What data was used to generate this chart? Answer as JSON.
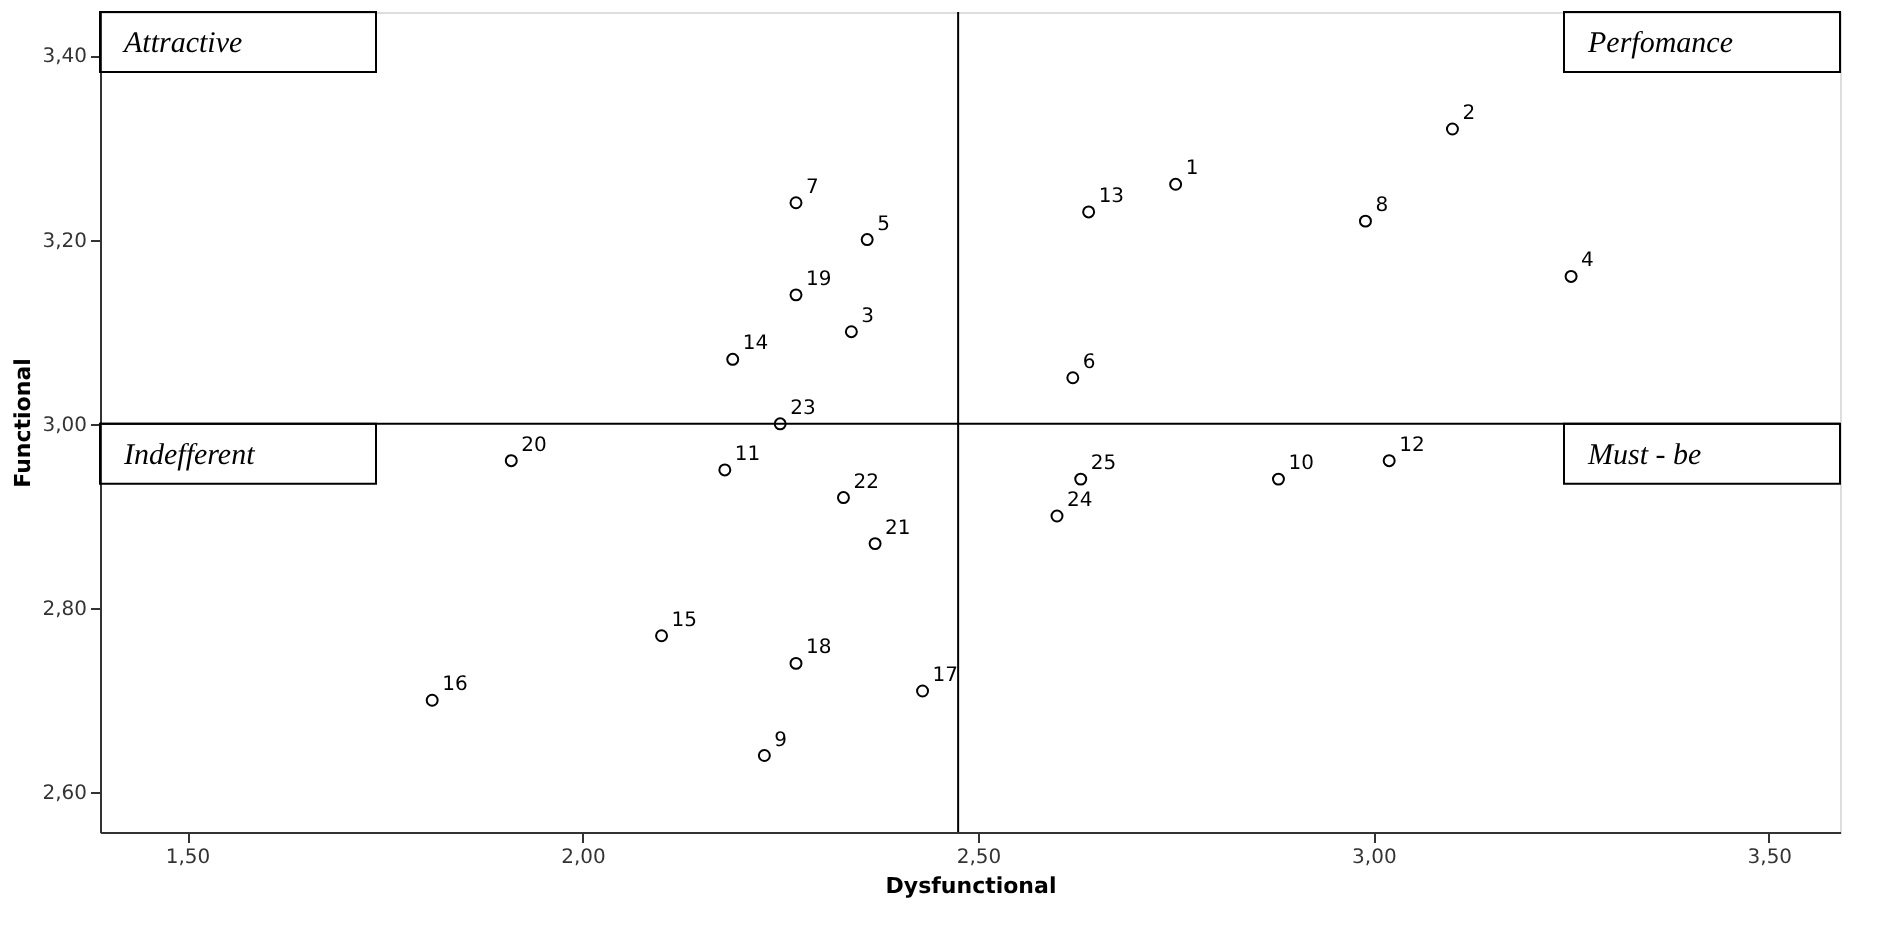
{
  "chart_data": {
    "type": "scatter",
    "xlabel": "Dysfunctional",
    "ylabel": "Functional",
    "x": [
      2.75,
      3.1,
      2.34,
      3.25,
      2.36,
      2.62,
      2.27,
      2.99,
      2.23,
      2.88,
      2.18,
      3.02,
      2.64,
      2.19,
      2.1,
      1.81,
      2.43,
      2.27,
      2.27,
      1.91,
      2.37,
      2.33,
      2.25,
      2.6,
      2.63
    ],
    "values": [
      3.26,
      3.32,
      3.1,
      3.16,
      3.2,
      3.05,
      3.24,
      3.22,
      2.64,
      2.94,
      2.95,
      2.96,
      3.23,
      3.07,
      2.77,
      2.7,
      2.71,
      2.74,
      3.14,
      2.96,
      2.87,
      2.92,
      3.0,
      2.9,
      2.94
    ],
    "color": "#000000",
    "marker": "circle",
    "grid": false,
    "xlim": [
      1.39,
      3.59
    ],
    "ylim": [
      2.557,
      3.447
    ],
    "xticks": [
      {
        "value": 1.5,
        "label": "1,50"
      },
      {
        "value": 2.0,
        "label": "2,00"
      },
      {
        "value": 2.5,
        "label": "2,50"
      },
      {
        "value": 3.0,
        "label": "3,00"
      },
      {
        "value": 3.5,
        "label": "3,50"
      }
    ],
    "yticks": [
      {
        "value": 2.6,
        "label": "2,60"
      },
      {
        "value": 2.8,
        "label": "2,80"
      },
      {
        "value": 3.0,
        "label": "3,00"
      },
      {
        "value": 3.2,
        "label": "3,20"
      },
      {
        "value": 3.4,
        "label": "3,40"
      }
    ],
    "ref_lines": [
      {
        "axis": "x",
        "value": 2.475,
        "color": "#000000"
      },
      {
        "axis": "y",
        "value": 3.0,
        "color": "#000000"
      }
    ],
    "annotations": [
      "Attractive",
      "Perfomance",
      "Indefferent",
      "Must - be",
      {
        "text": "1",
        "x": 2.75,
        "y": 3.26
      },
      {
        "text": "2",
        "x": 3.1,
        "y": 3.32
      },
      {
        "text": "3",
        "x": 2.34,
        "y": 3.1
      },
      {
        "text": "4",
        "x": 3.25,
        "y": 3.16
      },
      {
        "text": "5",
        "x": 2.36,
        "y": 3.2
      },
      {
        "text": "6",
        "x": 2.62,
        "y": 3.05
      },
      {
        "text": "7",
        "x": 2.27,
        "y": 3.24
      },
      {
        "text": "8",
        "x": 2.99,
        "y": 3.22
      },
      {
        "text": "9",
        "x": 2.23,
        "y": 2.64
      },
      {
        "text": "10",
        "x": 2.88,
        "y": 2.94
      },
      {
        "text": "11",
        "x": 2.18,
        "y": 2.95
      },
      {
        "text": "12",
        "x": 3.02,
        "y": 2.96
      },
      {
        "text": "13",
        "x": 2.64,
        "y": 3.23
      },
      {
        "text": "14",
        "x": 2.19,
        "y": 3.07
      },
      {
        "text": "15",
        "x": 2.1,
        "y": 2.77
      },
      {
        "text": "16",
        "x": 1.81,
        "y": 2.7
      },
      {
        "text": "17",
        "x": 2.43,
        "y": 2.71
      },
      {
        "text": "18",
        "x": 2.27,
        "y": 2.74
      },
      {
        "text": "19",
        "x": 2.27,
        "y": 3.14
      },
      {
        "text": "20",
        "x": 1.91,
        "y": 2.96
      },
      {
        "text": "21",
        "x": 2.37,
        "y": 2.87
      },
      {
        "text": "22",
        "x": 2.33,
        "y": 2.92
      },
      {
        "text": "23",
        "x": 2.25,
        "y": 3.0
      },
      {
        "text": "24",
        "x": 2.6,
        "y": 2.9
      },
      {
        "text": "25",
        "x": 2.63,
        "y": 2.94
      }
    ]
  }
}
